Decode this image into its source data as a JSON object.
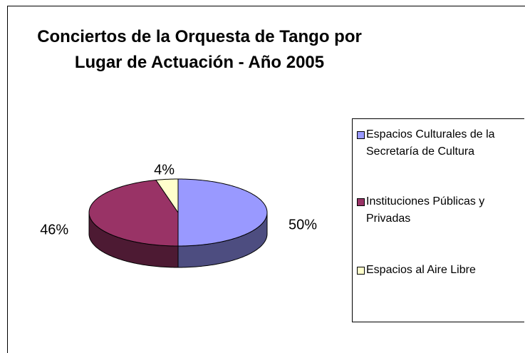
{
  "chart_data": {
    "type": "pie",
    "title": "Conciertos de la Orquesta de Tango por Lugar de Actuación - Año 2005",
    "categories": [
      "Espacios Culturales de la Secretaría de Cultura",
      "Instituciones Públicas y Privadas",
      "Espacios al Aire Libre"
    ],
    "values": [
      50,
      46,
      4
    ],
    "value_labels": [
      "50%",
      "46%",
      "4%"
    ],
    "colors": [
      "#9999ff",
      "#993366",
      "#ffffcc"
    ],
    "legend": "right"
  }
}
